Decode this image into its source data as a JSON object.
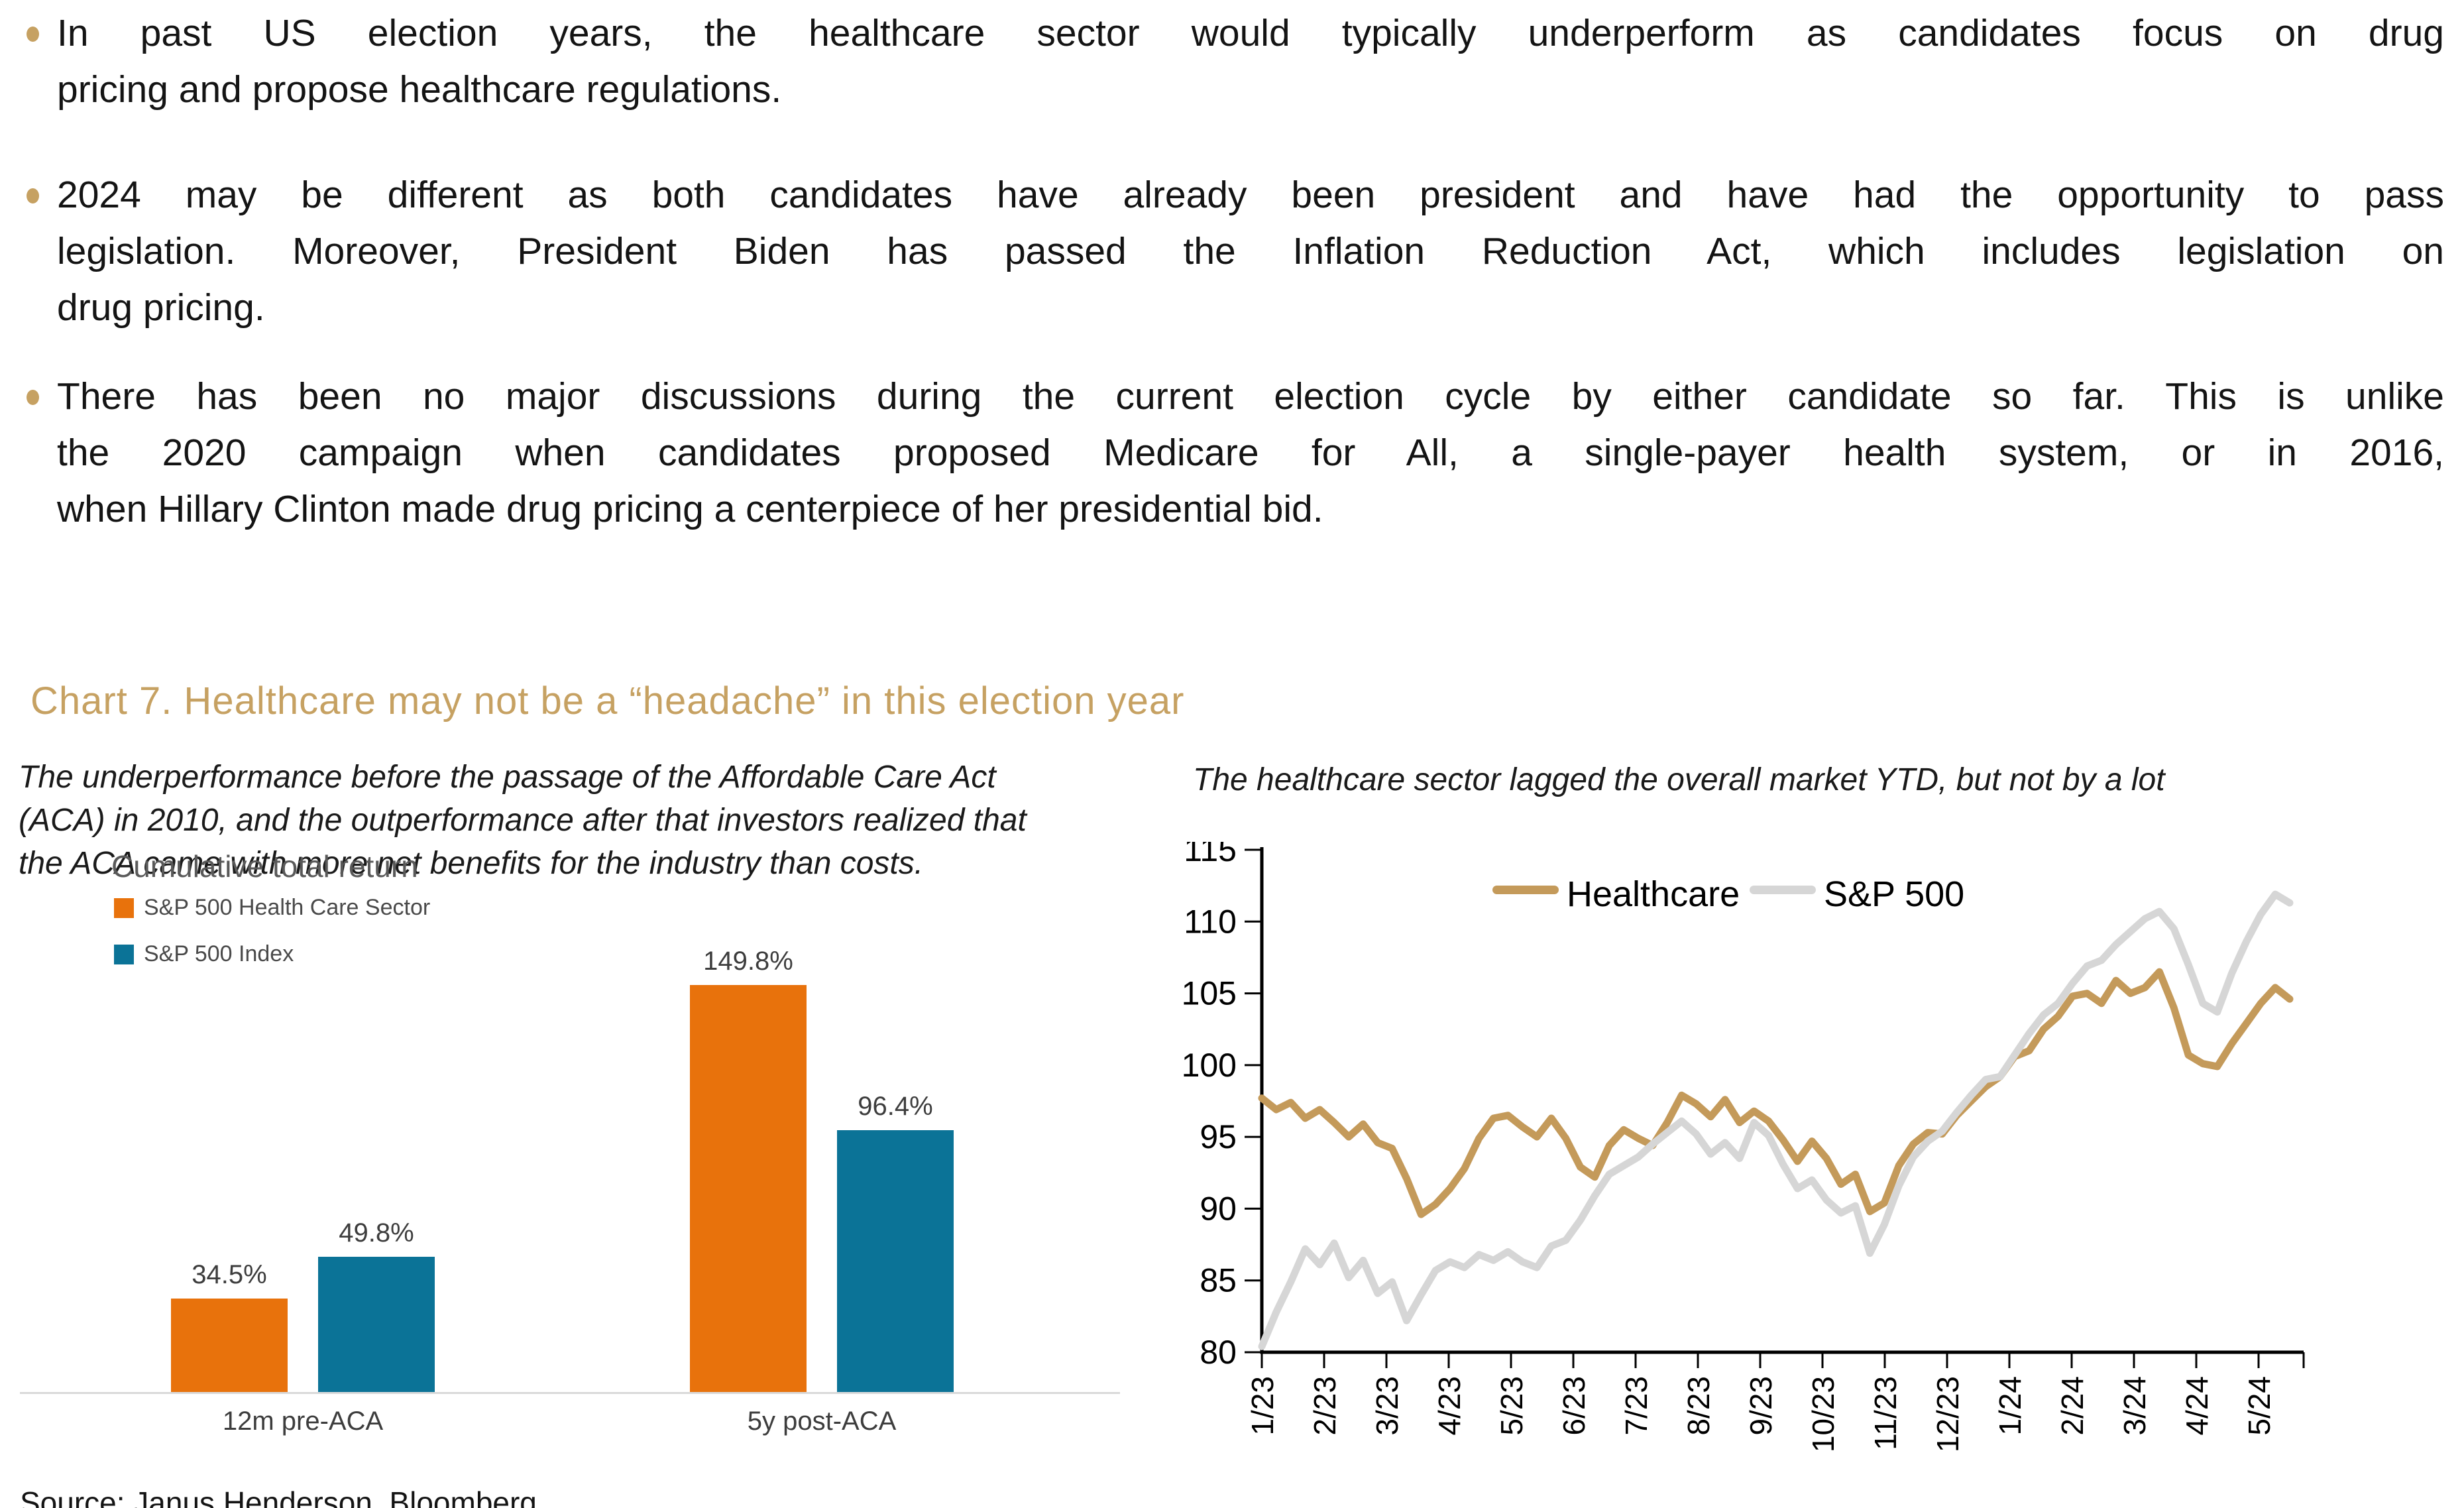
{
  "bullets": [
    {
      "lines": [
        "In past US election years, the healthcare sector would typically underperform as candidates focus on drug",
        "pricing and propose healthcare regulations."
      ]
    },
    {
      "lines": [
        "2024 may be different as both candidates have already been president and have had the opportunity to pass",
        "legislation. Moreover, President Biden has passed the Inflation Reduction Act, which includes legislation on",
        "drug pricing."
      ]
    },
    {
      "lines": [
        "There has been no major discussions during the current election cycle by either candidate so far. This is unlike",
        "the 2020 campaign when candidates proposed Medicare for All, a single-payer health system, or in 2016,",
        "when Hillary Clinton made drug pricing a centerpiece of her presidential bid."
      ]
    }
  ],
  "section_title": "Chart 7. Healthcare may not be a “headache” in this election year",
  "left_chart": {
    "subtitle": "The underperformance before the passage of the Affordable Care Act\n(ACA) in 2010, and the outperformance after that investors realized that\nthe ACA came with more net benefits for the industry than costs.",
    "title": "Cumulative total return"
  },
  "right_chart": {
    "subtitle": "The healthcare sector lagged the overall market YTD, but not by a lot"
  },
  "source_note": "Source: Janus Henderson, Bloomberg",
  "colors": {
    "accent_gold": "#C6A162",
    "orange": "#E8720C",
    "blue": "#0B7397",
    "healthcare_line": "#C49A5A",
    "sp500_line": "#D6D6D6",
    "axis": "#000000",
    "baseline_gray": "#D9D9D9"
  },
  "chart_data": [
    {
      "type": "bar",
      "title": "Cumulative total return",
      "categories": [
        "12m pre-ACA",
        "5y post-ACA"
      ],
      "series": [
        {
          "name": "S&P 500 Health Care Sector",
          "color": "#E8720C",
          "values": [
            34.5,
            149.8
          ],
          "labels": [
            "34.5%",
            "149.8%"
          ]
        },
        {
          "name": "S&P 500 Index",
          "color": "#0B7397",
          "values": [
            49.8,
            96.4
          ],
          "labels": [
            "49.8%",
            "96.4%"
          ]
        }
      ],
      "ylim": [
        0,
        160
      ],
      "unit": "%",
      "grid": false,
      "legend_position": "top-left"
    },
    {
      "type": "line",
      "x_note": "weekly index values, Jan 2023 - late May 2024, indexed",
      "x_tick_labels": [
        "1/23",
        "2/23",
        "3/23",
        "4/23",
        "5/23",
        "6/23",
        "7/23",
        "8/23",
        "9/23",
        "10/23",
        "11/23",
        "12/23",
        "1/24",
        "2/24",
        "3/24",
        "4/24",
        "5/24"
      ],
      "ylim": [
        80,
        115
      ],
      "ytick_labels": [
        "80",
        "85",
        "90",
        "95",
        "100",
        "105",
        "110",
        "115"
      ],
      "grid": false,
      "legend_position": "top-center",
      "series": [
        {
          "name": "Healthcare",
          "color": "#C49A5A",
          "values": [
            97.7,
            96.9,
            97.4,
            96.3,
            96.9,
            96.0,
            95.0,
            95.9,
            94.6,
            94.2,
            92.1,
            89.6,
            90.3,
            91.4,
            92.8,
            94.9,
            96.3,
            96.5,
            95.7,
            95.0,
            96.3,
            94.9,
            92.9,
            92.2,
            94.4,
            95.5,
            94.9,
            94.4,
            96.0,
            97.9,
            97.3,
            96.4,
            97.6,
            96.0,
            96.8,
            96.1,
            94.8,
            93.3,
            94.7,
            93.5,
            91.7,
            92.4,
            89.8,
            90.4,
            93.0,
            94.5,
            95.3,
            95.2,
            96.5,
            97.5,
            98.5,
            99.2,
            100.6,
            101.0,
            102.5,
            103.4,
            104.8,
            105.0,
            104.3,
            105.9,
            105.0,
            105.4,
            106.5,
            104.0,
            100.7,
            100.1,
            99.9,
            101.5,
            102.9,
            104.3,
            105.4,
            104.6
          ]
        },
        {
          "name": "S&P 500",
          "color": "#D6D6D6",
          "values": [
            80.4,
            82.8,
            84.9,
            87.2,
            86.1,
            87.6,
            85.2,
            86.4,
            84.1,
            84.9,
            82.2,
            84.0,
            85.7,
            86.3,
            85.9,
            86.8,
            86.4,
            87.0,
            86.3,
            85.9,
            87.4,
            87.8,
            89.2,
            90.9,
            92.4,
            93.0,
            93.6,
            94.5,
            95.3,
            96.1,
            95.2,
            93.8,
            94.6,
            93.5,
            96.0,
            95.1,
            93.1,
            91.4,
            92.0,
            90.6,
            89.7,
            90.2,
            86.9,
            88.9,
            91.6,
            93.6,
            94.7,
            95.4,
            96.7,
            97.9,
            99.0,
            99.2,
            100.7,
            102.2,
            103.5,
            104.3,
            105.7,
            106.9,
            107.3,
            108.4,
            109.3,
            110.2,
            110.7,
            109.5,
            107.0,
            104.3,
            103.7,
            106.4,
            108.6,
            110.5,
            111.9,
            111.3
          ]
        }
      ]
    }
  ]
}
